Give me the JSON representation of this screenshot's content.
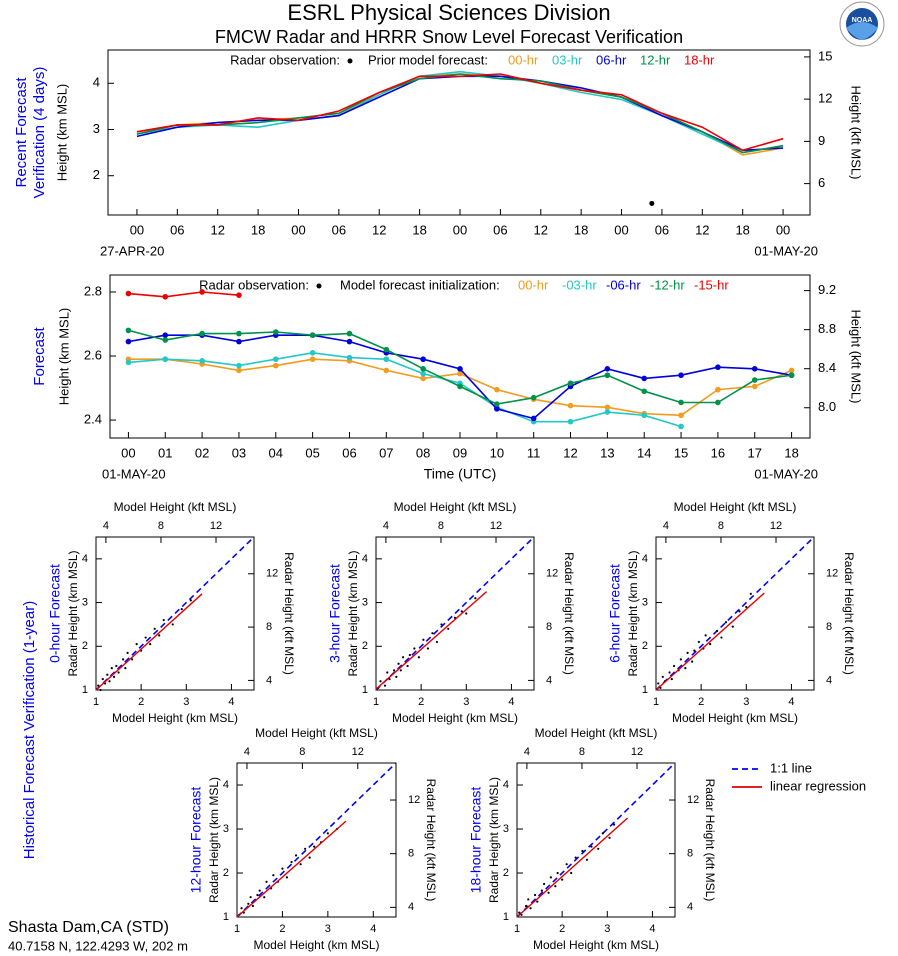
{
  "title": "ESRL Physical Sciences Division",
  "subtitle": "FMCW Radar and HRRR Snow Level Forecast Verification",
  "side_title": "Historical Forecast Verification (1-year)",
  "station": "Shasta Dam,CA (STD)",
  "location": "40.7158 N, 122.4293 W, 202 m",
  "legend": [
    {
      "name": "1:1 line",
      "color": "#0000ff",
      "dash": true
    },
    {
      "name": "linear regression",
      "color": "#e00000",
      "dash": false
    }
  ],
  "chart_data": [
    {
      "type": "line",
      "side_title": [
        "Recent Forecast",
        "Verification (4 days)"
      ],
      "ylabel": "Height (km MSL)",
      "y2label": "Height (kft MSL)",
      "observation_legend": "Radar observation:",
      "series_legend_title": "Prior model forecast:",
      "date_labels": [
        "27-APR-20",
        "01-MAY-20"
      ],
      "x": [
        0,
        6,
        12,
        18,
        24,
        30,
        36,
        42,
        48,
        54,
        60,
        66,
        72,
        78,
        84,
        90,
        96
      ],
      "xlim": [
        -4.3,
        100
      ],
      "xticks": [
        {
          "value": 0,
          "label": "00"
        },
        {
          "value": 6,
          "label": "06"
        },
        {
          "value": 12,
          "label": "12"
        },
        {
          "value": 18,
          "label": "18"
        },
        {
          "value": 24,
          "label": "00"
        },
        {
          "value": 30,
          "label": "06"
        },
        {
          "value": 36,
          "label": "12"
        },
        {
          "value": 42,
          "label": "18"
        },
        {
          "value": 48,
          "label": "00"
        },
        {
          "value": 54,
          "label": "06"
        },
        {
          "value": 60,
          "label": "12"
        },
        {
          "value": 66,
          "label": "18"
        },
        {
          "value": 72,
          "label": "00"
        },
        {
          "value": 78,
          "label": "06"
        },
        {
          "value": 84,
          "label": "12"
        },
        {
          "value": 90,
          "label": "18"
        },
        {
          "value": 96,
          "label": "00"
        }
      ],
      "ylim": [
        1.15,
        4.72
      ],
      "yticks": [
        2,
        3,
        4
      ],
      "y2lim": [
        3.77,
        15.49
      ],
      "y2ticks": [
        6,
        9,
        12,
        15
      ],
      "observation": {
        "x": [
          76.5
        ],
        "values": [
          1.4
        ],
        "color": "#000000"
      },
      "series": [
        {
          "name": "00-hr",
          "color": "#f29b1d",
          "values": [
            2.95,
            3.1,
            3.15,
            3.2,
            3.25,
            3.35,
            3.75,
            4.15,
            4.2,
            4.15,
            4.05,
            3.85,
            3.7,
            3.35,
            2.95,
            2.45,
            2.6
          ]
        },
        {
          "name": "03-hr",
          "color": "#22c8c8",
          "values": [
            2.9,
            3.05,
            3.1,
            3.05,
            3.2,
            3.3,
            3.75,
            4.15,
            4.25,
            4.15,
            4.0,
            3.8,
            3.65,
            3.3,
            2.9,
            2.5,
            2.65
          ]
        },
        {
          "name": "06-hr",
          "color": "#0000dd",
          "values": [
            2.85,
            3.05,
            3.15,
            3.2,
            3.2,
            3.3,
            3.7,
            4.1,
            4.15,
            4.15,
            4.05,
            3.9,
            3.7,
            3.3,
            2.95,
            2.55,
            2.6
          ]
        },
        {
          "name": "12-hr",
          "color": "#00914a",
          "values": [
            2.9,
            3.1,
            3.1,
            3.15,
            3.25,
            3.35,
            3.8,
            4.1,
            4.2,
            4.1,
            4.05,
            3.85,
            3.7,
            3.35,
            2.95,
            2.5,
            2.65
          ]
        },
        {
          "name": "18-hr",
          "color": "#ee0000",
          "values": [
            2.95,
            3.1,
            3.1,
            3.25,
            3.2,
            3.4,
            3.8,
            4.15,
            4.15,
            4.2,
            4.0,
            3.85,
            3.75,
            3.35,
            3.05,
            2.55,
            2.8
          ]
        }
      ]
    },
    {
      "type": "line",
      "markers": true,
      "side_title": [
        "Forecast"
      ],
      "ylabel": "Height (km MSL)",
      "y2label": "Height (kft MSL)",
      "xlabel": "Time (UTC)",
      "observation_legend": "Radar observation:",
      "series_legend_title": "Model forecast initialization:",
      "date_labels": [
        "01-MAY-20",
        "01-MAY-20"
      ],
      "categories": [
        "00",
        "01",
        "02",
        "03",
        "04",
        "05",
        "06",
        "07",
        "08",
        "09",
        "10",
        "11",
        "12",
        "13",
        "14",
        "15",
        "16",
        "17",
        "18"
      ],
      "ylim": [
        2.344,
        2.853
      ],
      "yticks": [
        2.4,
        2.6,
        2.8
      ],
      "y2lim": [
        7.69,
        9.36
      ],
      "y2ticks": [
        {
          "value": 8,
          "label": "8.0"
        },
        8.4,
        8.8,
        9.2
      ],
      "series": [
        {
          "name": "00-hr",
          "color": "#f29b1d",
          "values": [
            2.59,
            2.59,
            2.575,
            2.555,
            2.57,
            2.59,
            2.585,
            2.555,
            2.53,
            2.545,
            2.495,
            2.465,
            2.445,
            2.44,
            2.42,
            2.415,
            2.495,
            2.505,
            2.555
          ]
        },
        {
          "name": "-03-hr",
          "color": "#22c8c8",
          "values": [
            2.58,
            2.59,
            2.585,
            2.57,
            2.59,
            2.61,
            2.595,
            2.59,
            2.545,
            2.515,
            2.44,
            2.395,
            2.395,
            2.425,
            2.415,
            2.38,
            null,
            null,
            null
          ]
        },
        {
          "name": "-06-hr",
          "color": "#0000dd",
          "values": [
            2.645,
            2.665,
            2.665,
            2.645,
            2.665,
            2.665,
            2.645,
            2.61,
            2.59,
            2.56,
            2.435,
            2.405,
            2.505,
            2.56,
            2.53,
            2.54,
            2.565,
            2.56,
            2.54
          ]
        },
        {
          "name": "-12-hr",
          "color": "#00914a",
          "values": [
            2.68,
            2.65,
            2.67,
            2.67,
            2.675,
            2.665,
            2.67,
            2.62,
            2.56,
            2.505,
            2.45,
            2.47,
            2.515,
            2.54,
            2.49,
            2.455,
            2.455,
            2.525,
            2.54
          ]
        },
        {
          "name": "-15-hr",
          "color": "#ee0000",
          "values": [
            2.795,
            2.785,
            2.8,
            2.79,
            null,
            null,
            null,
            null,
            null,
            null,
            null,
            null,
            null,
            null,
            null,
            null,
            null,
            null,
            null
          ]
        }
      ]
    },
    {
      "type": "scatter",
      "side_title": "0-hour Forecast",
      "xlabel": "Model Height (km MSL)",
      "ylabel": "Radar Height (km MSL)",
      "x2label": "Model Height (kft MSL)",
      "y2label": "Radar Height (kft MSL)",
      "xlim": [
        1,
        4.5
      ],
      "ylim": [
        1,
        4.5
      ],
      "xticks": [
        1,
        2,
        3,
        4
      ],
      "yticks": [
        1,
        2,
        3,
        4
      ],
      "x2lim": [
        3.28,
        14.76
      ],
      "x2ticks": [
        4,
        8,
        12
      ],
      "y2lim": [
        3.28,
        14.76
      ],
      "y2ticks": [
        4,
        8,
        12
      ],
      "color": "#000000",
      "x": [
        1.05,
        1.1,
        1.15,
        1.2,
        1.25,
        1.3,
        1.35,
        1.4,
        1.45,
        1.5,
        1.6,
        1.65,
        1.7,
        1.8,
        1.9,
        2.0,
        2.1,
        2.2,
        2.3,
        2.4,
        2.5,
        2.7,
        2.9,
        3.1
      ],
      "values": [
        1.1,
        1.0,
        1.25,
        1.15,
        1.35,
        1.2,
        1.5,
        1.3,
        1.55,
        1.4,
        1.7,
        1.5,
        1.85,
        1.7,
        2.05,
        1.9,
        2.2,
        2.05,
        2.4,
        2.25,
        2.6,
        2.5,
        2.85,
        3.05
      ],
      "regression": {
        "x": [
          1,
          3.35
        ],
        "values": [
          1.0,
          3.2
        ]
      }
    },
    {
      "type": "scatter",
      "side_title": "3-hour Forecast",
      "xlabel": "Model Height (km MSL)",
      "ylabel": "Radar Height (km MSL)",
      "x2label": "Model Height (kft MSL)",
      "y2label": "Radar Height (kft MSL)",
      "xlim": [
        1,
        4.5
      ],
      "ylim": [
        1,
        4.5
      ],
      "xticks": [
        1,
        2,
        3,
        4
      ],
      "yticks": [
        1,
        2,
        3,
        4
      ],
      "x2lim": [
        3.28,
        14.76
      ],
      "x2ticks": [
        4,
        8,
        12
      ],
      "y2lim": [
        3.28,
        14.76
      ],
      "y2ticks": [
        4,
        8,
        12
      ],
      "color": "#000000",
      "x": [
        1.05,
        1.1,
        1.2,
        1.25,
        1.3,
        1.4,
        1.45,
        1.5,
        1.55,
        1.6,
        1.7,
        1.75,
        1.85,
        1.95,
        2.05,
        2.15,
        2.25,
        2.35,
        2.45,
        2.6,
        2.75,
        2.9,
        3.0,
        3.2
      ],
      "values": [
        1.05,
        1.2,
        1.1,
        1.4,
        1.25,
        1.45,
        1.3,
        1.6,
        1.45,
        1.75,
        1.55,
        1.8,
        1.95,
        1.75,
        2.15,
        1.95,
        2.3,
        2.1,
        2.5,
        2.4,
        2.65,
        2.8,
        2.75,
        3.1
      ],
      "regression": {
        "x": [
          1,
          3.45
        ],
        "values": [
          1.02,
          3.25
        ]
      }
    },
    {
      "type": "scatter",
      "side_title": "6-hour Forecast",
      "xlabel": "Model Height (km MSL)",
      "ylabel": "Radar Height (km MSL)",
      "x2label": "Model Height (kft MSL)",
      "y2label": "Radar Height (kft MSL)",
      "xlim": [
        1,
        4.5
      ],
      "ylim": [
        1,
        4.5
      ],
      "xticks": [
        1,
        2,
        3,
        4
      ],
      "yticks": [
        1,
        2,
        3,
        4
      ],
      "x2lim": [
        3.28,
        14.76
      ],
      "x2ticks": [
        4,
        8,
        12
      ],
      "y2lim": [
        3.28,
        14.76
      ],
      "y2ticks": [
        4,
        8,
        12
      ],
      "color": "#000000",
      "x": [
        1.05,
        1.1,
        1.15,
        1.2,
        1.3,
        1.35,
        1.4,
        1.5,
        1.55,
        1.65,
        1.7,
        1.8,
        1.85,
        1.95,
        2.05,
        2.1,
        2.2,
        2.35,
        2.45,
        2.55,
        2.7,
        2.85,
        3.0,
        3.1
      ],
      "values": [
        1.15,
        1.05,
        1.3,
        1.2,
        1.4,
        1.25,
        1.55,
        1.45,
        1.7,
        1.5,
        1.85,
        1.65,
        1.9,
        2.1,
        1.95,
        2.25,
        2.05,
        2.35,
        2.2,
        2.55,
        2.45,
        2.8,
        2.9,
        3.2
      ],
      "regression": {
        "x": [
          1,
          3.4
        ],
        "values": [
          1.0,
          3.22
        ]
      }
    },
    {
      "type": "scatter",
      "side_title": "12-hour Forecast",
      "xlabel": "Model Height (km MSL)",
      "ylabel": "Radar Height (km MSL)",
      "x2label": "Model Height (kft MSL)",
      "y2label": "Radar Height (kft MSL)",
      "xlim": [
        1,
        4.5
      ],
      "ylim": [
        1,
        4.5
      ],
      "xticks": [
        1,
        2,
        3,
        4
      ],
      "yticks": [
        1,
        2,
        3,
        4
      ],
      "x2lim": [
        3.28,
        14.76
      ],
      "x2ticks": [
        4,
        8,
        12
      ],
      "y2lim": [
        3.28,
        14.76
      ],
      "y2ticks": [
        4,
        8,
        12
      ],
      "color": "#000000",
      "x": [
        1.05,
        1.1,
        1.15,
        1.25,
        1.3,
        1.35,
        1.45,
        1.5,
        1.6,
        1.65,
        1.75,
        1.8,
        1.9,
        2.0,
        2.1,
        2.2,
        2.3,
        2.4,
        2.5,
        2.6,
        2.7,
        2.85,
        3.0,
        3.2
      ],
      "values": [
        1.05,
        1.2,
        1.1,
        1.3,
        1.45,
        1.25,
        1.5,
        1.6,
        1.45,
        1.8,
        1.65,
        1.95,
        1.8,
        2.1,
        1.9,
        2.25,
        2.4,
        2.2,
        2.55,
        2.35,
        2.6,
        2.7,
        2.9,
        3.0
      ],
      "regression": {
        "x": [
          1,
          3.4
        ],
        "values": [
          1.0,
          3.18
        ]
      }
    },
    {
      "type": "scatter",
      "side_title": "18-hour Forecast",
      "xlabel": "Model Height (km MSL)",
      "ylabel": "Radar Height (km MSL)",
      "x2label": "Model Height (kft MSL)",
      "y2label": "Radar Height (kft MSL)",
      "xlim": [
        1,
        4.5
      ],
      "ylim": [
        1,
        4.5
      ],
      "xticks": [
        1,
        2,
        3,
        4
      ],
      "yticks": [
        1,
        2,
        3,
        4
      ],
      "x2lim": [
        3.28,
        14.76
      ],
      "x2ticks": [
        4,
        8,
        12
      ],
      "y2lim": [
        3.28,
        14.76
      ],
      "y2ticks": [
        4,
        8,
        12
      ],
      "color": "#000000",
      "x": [
        1.05,
        1.1,
        1.2,
        1.25,
        1.3,
        1.4,
        1.45,
        1.55,
        1.6,
        1.7,
        1.75,
        1.85,
        1.9,
        2.0,
        2.1,
        2.2,
        2.3,
        2.45,
        2.55,
        2.65,
        2.8,
        2.9,
        3.05,
        3.15
      ],
      "values": [
        1.1,
        1.05,
        1.25,
        1.4,
        1.2,
        1.5,
        1.35,
        1.6,
        1.75,
        1.55,
        1.9,
        1.7,
        2.0,
        1.85,
        2.2,
        2.0,
        2.35,
        2.5,
        2.3,
        2.6,
        2.55,
        2.9,
        2.8,
        3.1
      ],
      "regression": {
        "x": [
          1,
          3.45
        ],
        "values": [
          1.0,
          3.25
        ]
      }
    }
  ]
}
